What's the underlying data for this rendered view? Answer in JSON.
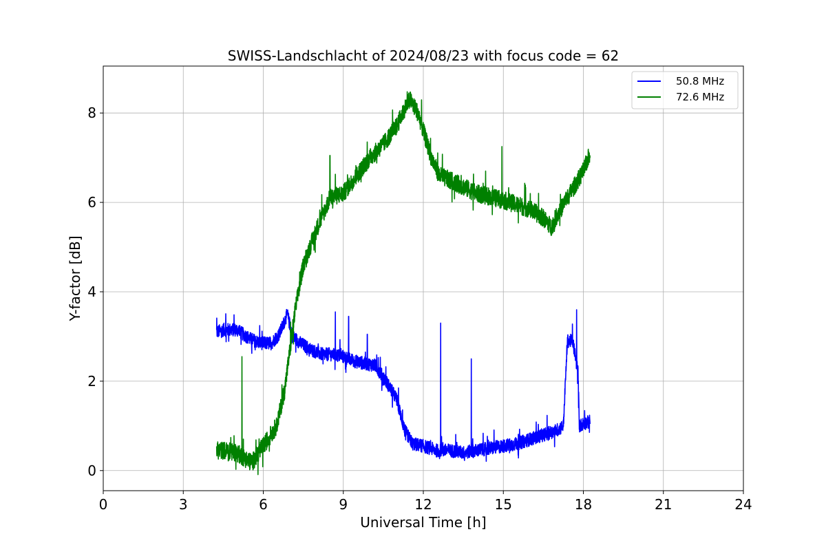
{
  "chart_data": {
    "type": "line",
    "title": "SWISS-Landschlacht of 2024/08/23 with focus code = 62",
    "xlabel": "Universal Time [h]",
    "ylabel": "Y-factor [dB]",
    "xlim": [
      0,
      24
    ],
    "ylim": [
      -0.45,
      9.05
    ],
    "xticks": [
      0,
      3,
      6,
      9,
      12,
      15,
      18,
      21,
      24
    ],
    "xtick_labels": [
      "0",
      "3",
      "6",
      "9",
      "12",
      "15",
      "18",
      "21",
      "24"
    ],
    "yticks": [
      0,
      2,
      4,
      6,
      8
    ],
    "ytick_labels": [
      "0",
      "2",
      "4",
      "6",
      "8"
    ],
    "grid": true,
    "legend_position": "top-right",
    "series": [
      {
        "name": "50.8 MHz",
        "color": "#0000ff",
        "x": [
          4.25,
          4.5,
          5.0,
          5.5,
          5.9,
          6.3,
          6.6,
          6.9,
          7.1,
          7.4,
          7.8,
          8.2,
          8.6,
          9.0,
          9.4,
          9.8,
          10.2,
          10.6,
          11.0,
          11.3,
          11.6,
          12.0,
          12.5,
          13.0,
          13.5,
          14.0,
          14.5,
          15.0,
          15.5,
          16.0,
          16.5,
          17.0,
          17.25,
          17.4,
          17.6,
          17.8,
          17.85,
          18.0,
          18.25
        ],
        "y": [
          3.1,
          3.15,
          3.15,
          2.95,
          2.85,
          2.85,
          3.05,
          3.5,
          3.0,
          2.85,
          2.7,
          2.6,
          2.6,
          2.55,
          2.45,
          2.4,
          2.35,
          2.0,
          1.6,
          0.9,
          0.6,
          0.55,
          0.45,
          0.45,
          0.4,
          0.45,
          0.5,
          0.55,
          0.6,
          0.7,
          0.8,
          0.9,
          1.0,
          2.9,
          2.9,
          2.2,
          1.0,
          1.05,
          1.1
        ],
        "noise": 0.3,
        "spikes": [
          [
            8.7,
            3.55
          ],
          [
            9.2,
            3.45
          ],
          [
            9.9,
            3.05
          ],
          [
            12.65,
            3.3
          ],
          [
            13.8,
            2.5
          ],
          [
            17.75,
            3.6
          ]
        ]
      },
      {
        "name": "72.6 MHz",
        "color": "#008000",
        "x": [
          4.25,
          4.5,
          5.0,
          5.5,
          5.6,
          6.0,
          6.5,
          6.8,
          7.0,
          7.2,
          7.5,
          8.0,
          8.5,
          9.0,
          9.5,
          10.0,
          10.5,
          11.0,
          11.3,
          11.5,
          11.8,
          12.0,
          12.3,
          12.6,
          13.0,
          14.0,
          15.0,
          16.0,
          16.5,
          16.8,
          17.0,
          17.5,
          18.0,
          18.25
        ],
        "y": [
          0.45,
          0.45,
          0.4,
          0.2,
          0.2,
          0.55,
          1.0,
          1.8,
          2.7,
          3.6,
          4.6,
          5.4,
          6.1,
          6.2,
          6.6,
          7.0,
          7.3,
          7.7,
          8.1,
          8.3,
          8.0,
          7.6,
          7.0,
          6.6,
          6.5,
          6.2,
          6.05,
          5.85,
          5.65,
          5.45,
          5.7,
          6.2,
          6.7,
          7.1
        ],
        "noise": 0.4,
        "spikes": [
          [
            5.2,
            2.55
          ],
          [
            8.5,
            7.05
          ],
          [
            14.95,
            7.25
          ]
        ]
      }
    ]
  }
}
